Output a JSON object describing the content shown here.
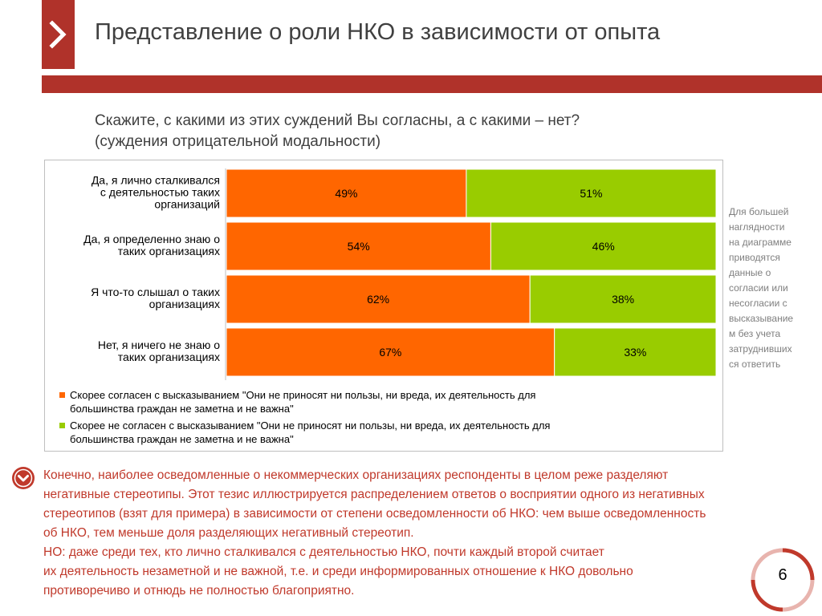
{
  "header": {
    "title": "Представление о роли НКО в зависимости от опыта",
    "accent_color": "#b0322a"
  },
  "question": {
    "line1": "Скажите, с какими из этих суждений Вы согласны, а с какими – нет?",
    "line2": "(суждения отрицательной модальности)"
  },
  "chart_data": {
    "type": "bar",
    "orientation": "horizontal-stacked-100",
    "categories": [
      [
        "Да, я лично сталкивался",
        "с деятельностью таких",
        "организаций"
      ],
      [
        "Да, я определенно знаю о",
        "таких организациях"
      ],
      [
        "Я что-то слышал о таких",
        "организациях"
      ],
      [
        "Нет, я ничего не знаю о",
        "таких организациях"
      ]
    ],
    "series": [
      {
        "name": "Скорее согласен с высказыванием \"Они не приносят ни пользы, ни вреда, их деятельность для большинства граждан не заметна и не важна\"",
        "legend_lines": [
          "Скорее согласен с высказыванием \"Они не приносят ни пользы, ни вреда, их деятельность для",
          "большинства граждан не заметна и не важна\""
        ],
        "color": "#ff6600",
        "values": [
          49,
          54,
          62,
          67
        ],
        "labels": [
          "49%",
          "54%",
          "62%",
          "67%"
        ]
      },
      {
        "name": "Скорее не согласен с высказыванием \"Они не приносят ни пользы, ни вреда, их деятельность для большинства граждан не заметна и не важна\"",
        "legend_lines": [
          "Скорее не согласен с высказыванием \"Они не приносят ни пользы, ни вреда, их деятельность для",
          "большинства граждан не заметна и не важна\""
        ],
        "color": "#99cc00",
        "values": [
          51,
          46,
          38,
          33
        ],
        "labels": [
          "51%",
          "46%",
          "38%",
          "33%"
        ]
      }
    ],
    "xlim": [
      0,
      100
    ],
    "grid": false,
    "legend_position": "bottom"
  },
  "side_note": {
    "lines": [
      "Для большей",
      "наглядности",
      "на диаграмме",
      "приводятся",
      "данные о",
      "согласии или",
      "несогласии с",
      "высказывание",
      "м без учета",
      "затруднивших",
      "ся ответить"
    ]
  },
  "body": {
    "lines": [
      "Конечно, наиболее осведомленные о некоммерческих организациях респонденты в целом реже разделяют",
      "негативные стереотипы. Этот тезис иллюстрируется распределением ответов о восприятии одного из негативных",
      "стереотипов (взят для примера) в зависимости от степени осведомленности об НКО: чем выше осведомленность",
      "об НКО, тем меньше доля разделяющих негативный стереотип.",
      "НО: даже среди тех, кто лично сталкивался с деятельностью НКО, почти каждый второй считает",
      "их деятельность незаметной и не важной, т.е. и среди информированных отношение к НКО довольно",
      "противоречиво и отнюдь не полностью благоприятно."
    ],
    "text_color": "#c0392b"
  },
  "footer": {
    "page_number": "6"
  }
}
